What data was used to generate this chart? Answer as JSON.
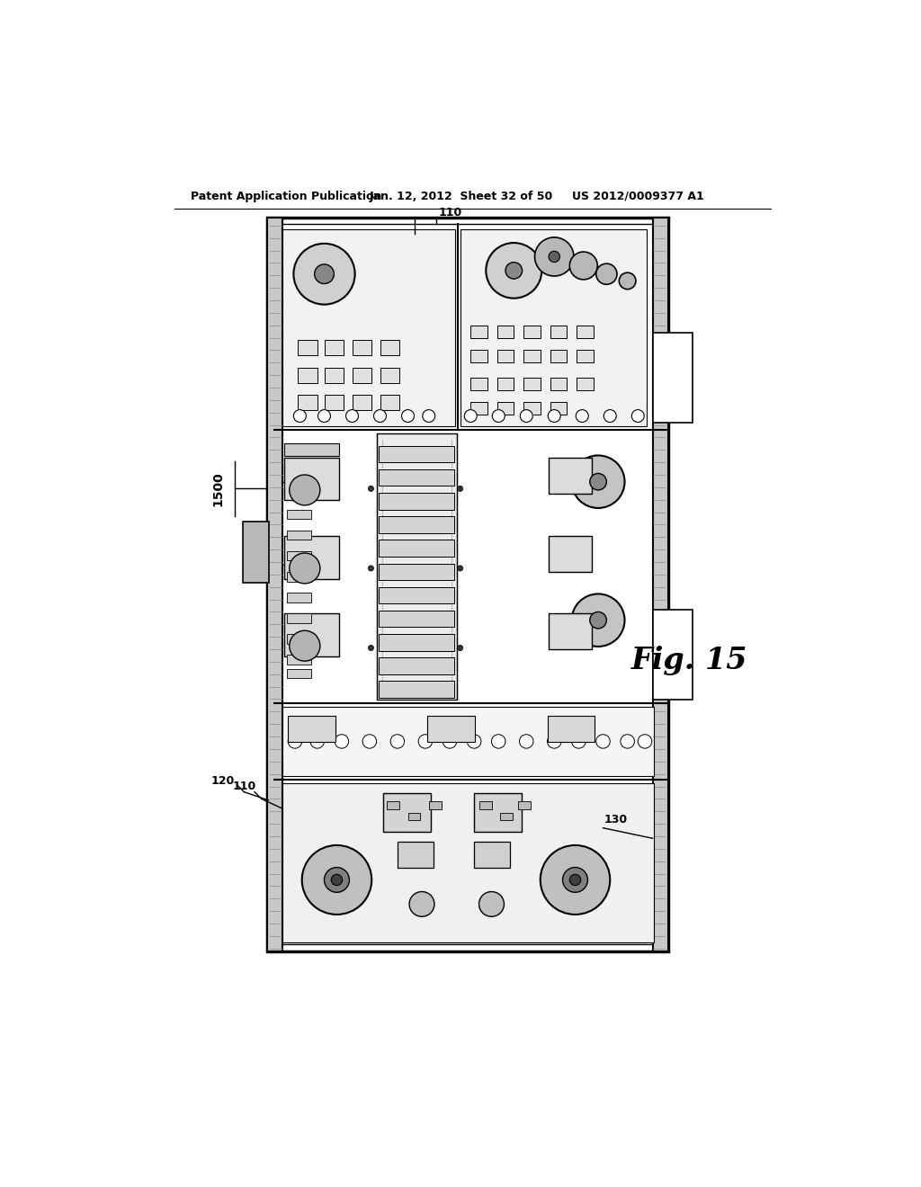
{
  "bg_color": "#ffffff",
  "header_left": "Patent Application Publication",
  "header_mid": "Jan. 12, 2012  Sheet 32 of 50",
  "header_right": "US 2012/0009377 A1",
  "fig_label": "Fig. 15",
  "ref_110_top": "110",
  "ref_1500": "1500",
  "ref_120": "120",
  "ref_110_bot": "110",
  "ref_130": "130",
  "line_width": 1.2
}
